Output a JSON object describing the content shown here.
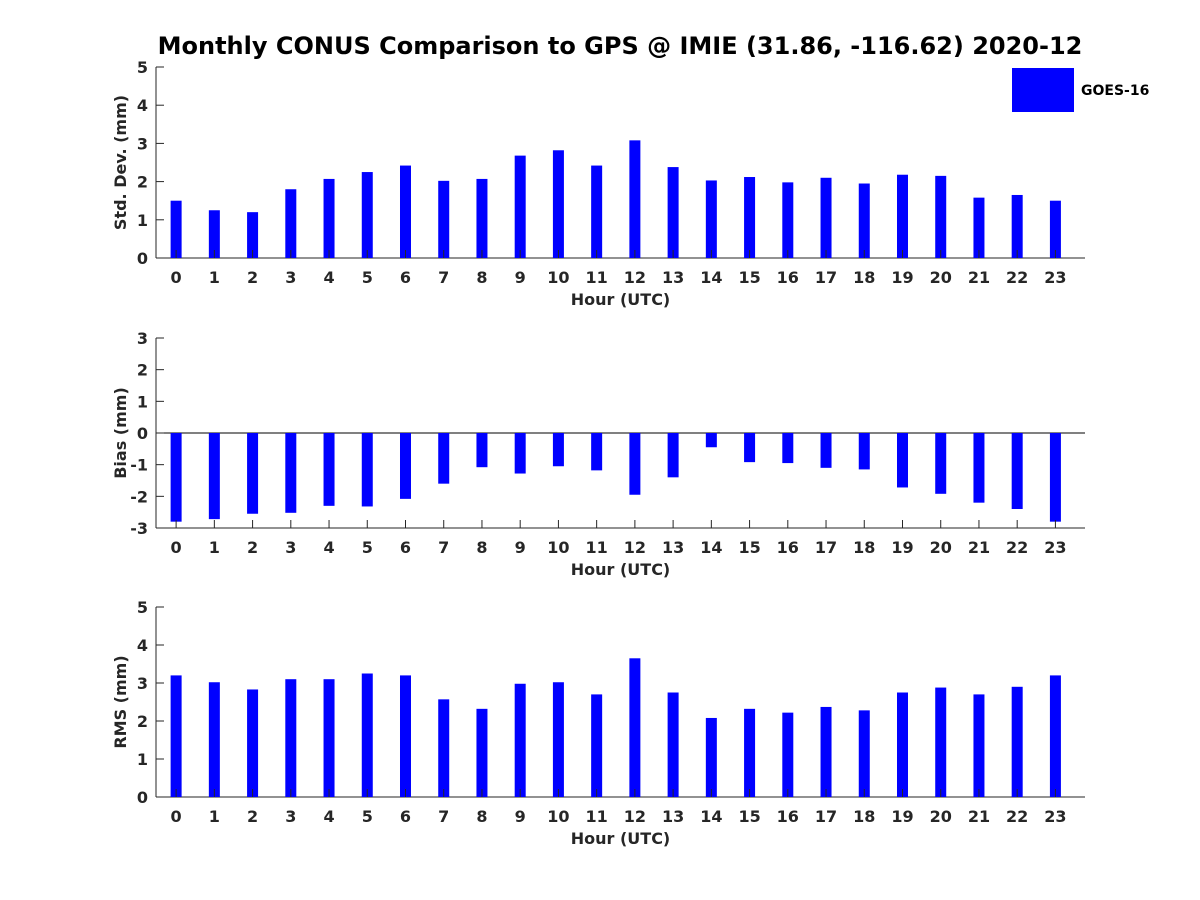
{
  "title": "Monthly CONUS Comparison to GPS @ IMIE (31.86, -116.62) 2020-12",
  "legend": {
    "label": "GOES-16",
    "color": "#0000ff",
    "placement": "top-right"
  },
  "chart_data": [
    {
      "type": "bar",
      "xlabel": "Hour (UTC)",
      "ylabel": "Std. Dev. (mm)",
      "ylim": [
        0,
        5
      ],
      "yticks": [
        "0",
        "1",
        "2",
        "3",
        "4",
        "5"
      ],
      "categories": [
        "0",
        "1",
        "2",
        "3",
        "4",
        "5",
        "6",
        "7",
        "8",
        "9",
        "10",
        "11",
        "12",
        "13",
        "14",
        "15",
        "16",
        "17",
        "18",
        "19",
        "20",
        "21",
        "22",
        "23"
      ],
      "series": [
        {
          "name": "GOES-16",
          "values": [
            1.5,
            1.25,
            1.2,
            1.8,
            2.07,
            2.25,
            2.42,
            2.02,
            2.07,
            2.68,
            2.82,
            2.42,
            3.08,
            2.38,
            2.03,
            2.12,
            1.98,
            2.1,
            1.95,
            2.18,
            2.15,
            1.58,
            1.65,
            1.5
          ]
        }
      ],
      "grid": false
    },
    {
      "type": "bar",
      "xlabel": "Hour (UTC)",
      "ylabel": "Bias (mm)",
      "ylim": [
        -3,
        3
      ],
      "yticks": [
        "-3",
        "-2",
        "-1",
        "0",
        "1",
        "2",
        "3"
      ],
      "categories": [
        "0",
        "1",
        "2",
        "3",
        "4",
        "5",
        "6",
        "7",
        "8",
        "9",
        "10",
        "11",
        "12",
        "13",
        "14",
        "15",
        "16",
        "17",
        "18",
        "19",
        "20",
        "21",
        "22",
        "23"
      ],
      "series": [
        {
          "name": "GOES-16",
          "values": [
            -2.8,
            -2.72,
            -2.55,
            -2.52,
            -2.3,
            -2.32,
            -2.08,
            -1.6,
            -1.08,
            -1.28,
            -1.05,
            -1.18,
            -1.95,
            -1.4,
            -0.45,
            -0.92,
            -0.95,
            -1.1,
            -1.15,
            -1.72,
            -1.92,
            -2.2,
            -2.4,
            -2.8
          ]
        }
      ],
      "grid": false
    },
    {
      "type": "bar",
      "xlabel": "Hour (UTC)",
      "ylabel": "RMS (mm)",
      "ylim": [
        0,
        5
      ],
      "yticks": [
        "0",
        "1",
        "2",
        "3",
        "4",
        "5"
      ],
      "categories": [
        "0",
        "1",
        "2",
        "3",
        "4",
        "5",
        "6",
        "7",
        "8",
        "9",
        "10",
        "11",
        "12",
        "13",
        "14",
        "15",
        "16",
        "17",
        "18",
        "19",
        "20",
        "21",
        "22",
        "23"
      ],
      "series": [
        {
          "name": "GOES-16",
          "values": [
            3.2,
            3.02,
            2.83,
            3.1,
            3.1,
            3.25,
            3.2,
            2.57,
            2.32,
            2.98,
            3.02,
            2.7,
            3.65,
            2.75,
            2.08,
            2.32,
            2.22,
            2.37,
            2.28,
            2.75,
            2.88,
            2.7,
            2.9,
            3.2
          ]
        }
      ],
      "grid": false
    }
  ]
}
